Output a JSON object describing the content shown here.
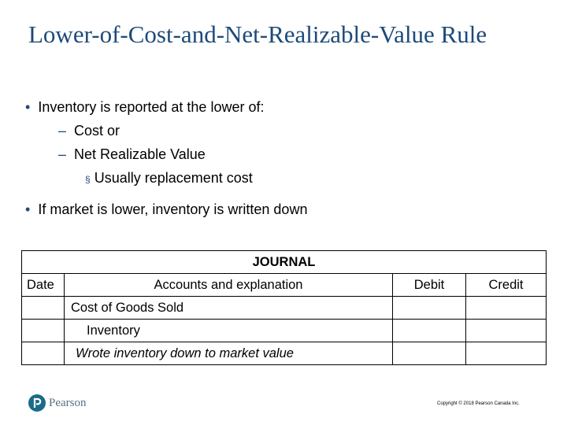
{
  "title": "Lower-of-Cost-and-Net-Realizable-Value Rule",
  "bullets": [
    {
      "text": "Inventory is reported at the lower of:",
      "items": [
        {
          "text": "Cost or"
        },
        {
          "text": "Net Realizable Value",
          "items": [
            {
              "text": "Usually replacement cost"
            }
          ]
        }
      ]
    },
    {
      "text": "If market is lower, inventory is written down"
    }
  ],
  "journal": {
    "title": "JOURNAL",
    "columns": [
      "Date",
      "Accounts and explanation",
      "Debit",
      "Credit"
    ],
    "rows": [
      {
        "account": "Cost of Goods Sold"
      },
      {
        "account": "Inventory"
      },
      {
        "account": "Wrote inventory down to market value"
      }
    ]
  },
  "footer": {
    "logo": "Pearson",
    "copyright": "Copyright © 2018 Pearson Canada Inc."
  }
}
